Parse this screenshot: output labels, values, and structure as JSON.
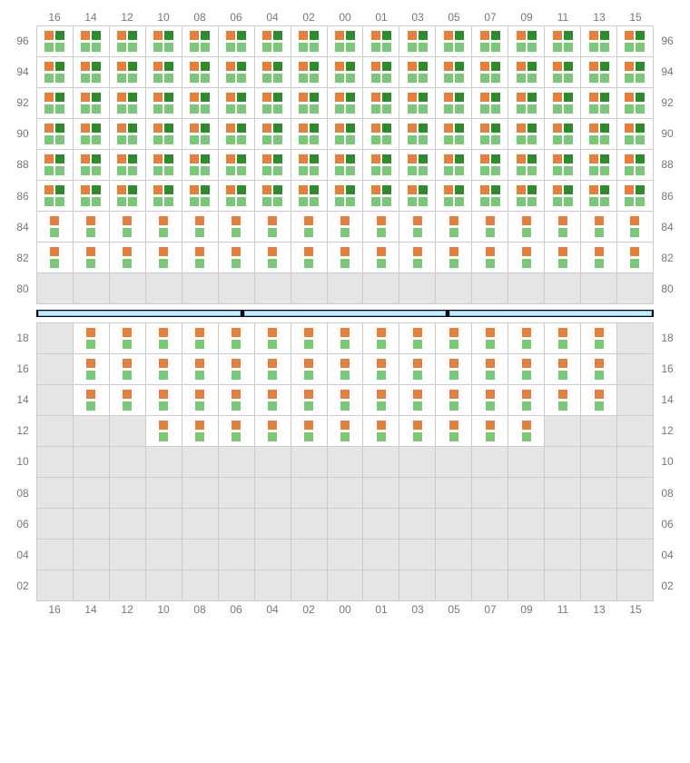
{
  "meta": {
    "description": "Rack/cabinet heatmap grid — two stacked grids separated by a black bar with blue segments",
    "colors": {
      "orange": "#e67e3c",
      "dark_green": "#2e8b2e",
      "light_green": "#79c979",
      "empty_bg": "#e5e5e5",
      "grid_line": "#cccccc",
      "divider_bg": "#000000",
      "divider_seg_fill": "#cfeafc",
      "divider_seg_border": "#6cc0f0",
      "label_color": "#777777"
    },
    "cell_variants_note": "full = 2×2 box (orange,dgreen / lgreen,lgreen); half = 1×2 stack (orange / lgreen); empty = grey blank"
  },
  "columns": [
    "16",
    "14",
    "12",
    "10",
    "08",
    "06",
    "04",
    "02",
    "00",
    "01",
    "03",
    "05",
    "07",
    "09",
    "11",
    "13",
    "15"
  ],
  "top": {
    "row_labels": [
      "96",
      "94",
      "92",
      "90",
      "88",
      "86",
      "84",
      "82",
      "80"
    ],
    "cells": [
      [
        "full",
        "full",
        "full",
        "full",
        "full",
        "full",
        "full",
        "full",
        "full",
        "full",
        "full",
        "full",
        "full",
        "full",
        "full",
        "full",
        "full"
      ],
      [
        "full",
        "full",
        "full",
        "full",
        "full",
        "full",
        "full",
        "full",
        "full",
        "full",
        "full",
        "full",
        "full",
        "full",
        "full",
        "full",
        "full"
      ],
      [
        "full",
        "full",
        "full",
        "full",
        "full",
        "full",
        "full",
        "full",
        "full",
        "full",
        "full",
        "full",
        "full",
        "full",
        "full",
        "full",
        "full"
      ],
      [
        "full",
        "full",
        "full",
        "full",
        "full",
        "full",
        "full",
        "full",
        "full",
        "full",
        "full",
        "full",
        "full",
        "full",
        "full",
        "full",
        "full"
      ],
      [
        "full",
        "full",
        "full",
        "full",
        "full",
        "full",
        "full",
        "full",
        "full",
        "full",
        "full",
        "full",
        "full",
        "full",
        "full",
        "full",
        "full"
      ],
      [
        "full",
        "full",
        "full",
        "full",
        "full",
        "full",
        "full",
        "full",
        "full",
        "full",
        "full",
        "full",
        "full",
        "full",
        "full",
        "full",
        "full"
      ],
      [
        "half",
        "half",
        "half",
        "half",
        "half",
        "half",
        "half",
        "half",
        "half",
        "half",
        "half",
        "half",
        "half",
        "half",
        "half",
        "half",
        "half"
      ],
      [
        "half",
        "half",
        "half",
        "half",
        "half",
        "half",
        "half",
        "half",
        "half",
        "half",
        "half",
        "half",
        "half",
        "half",
        "half",
        "half",
        "half"
      ],
      [
        "empty",
        "empty",
        "empty",
        "empty",
        "empty",
        "empty",
        "empty",
        "empty",
        "empty",
        "empty",
        "empty",
        "empty",
        "empty",
        "empty",
        "empty",
        "empty",
        "empty"
      ]
    ]
  },
  "bottom": {
    "row_labels": [
      "18",
      "16",
      "14",
      "12",
      "10",
      "08",
      "06",
      "04",
      "02"
    ],
    "cells": [
      [
        "empty",
        "half",
        "half",
        "half",
        "half",
        "half",
        "half",
        "half",
        "half",
        "half",
        "half",
        "half",
        "half",
        "half",
        "half",
        "half",
        "empty"
      ],
      [
        "empty",
        "half",
        "half",
        "half",
        "half",
        "half",
        "half",
        "half",
        "half",
        "half",
        "half",
        "half",
        "half",
        "half",
        "half",
        "half",
        "empty"
      ],
      [
        "empty",
        "half",
        "half",
        "half",
        "half",
        "half",
        "half",
        "half",
        "half",
        "half",
        "half",
        "half",
        "half",
        "half",
        "half",
        "half",
        "empty"
      ],
      [
        "empty",
        "empty",
        "empty",
        "half",
        "half",
        "half",
        "half",
        "half",
        "half",
        "half",
        "half",
        "half",
        "half",
        "half",
        "empty",
        "empty",
        "empty"
      ],
      [
        "empty",
        "empty",
        "empty",
        "empty",
        "empty",
        "empty",
        "empty",
        "empty",
        "empty",
        "empty",
        "empty",
        "empty",
        "empty",
        "empty",
        "empty",
        "empty",
        "empty"
      ],
      [
        "empty",
        "empty",
        "empty",
        "empty",
        "empty",
        "empty",
        "empty",
        "empty",
        "empty",
        "empty",
        "empty",
        "empty",
        "empty",
        "empty",
        "empty",
        "empty",
        "empty"
      ],
      [
        "empty",
        "empty",
        "empty",
        "empty",
        "empty",
        "empty",
        "empty",
        "empty",
        "empty",
        "empty",
        "empty",
        "empty",
        "empty",
        "empty",
        "empty",
        "empty",
        "empty"
      ],
      [
        "empty",
        "empty",
        "empty",
        "empty",
        "empty",
        "empty",
        "empty",
        "empty",
        "empty",
        "empty",
        "empty",
        "empty",
        "empty",
        "empty",
        "empty",
        "empty",
        "empty"
      ],
      [
        "empty",
        "empty",
        "empty",
        "empty",
        "empty",
        "empty",
        "empty",
        "empty",
        "empty",
        "empty",
        "empty",
        "empty",
        "empty",
        "empty",
        "empty",
        "empty",
        "empty"
      ]
    ]
  },
  "divider_segments": 3
}
